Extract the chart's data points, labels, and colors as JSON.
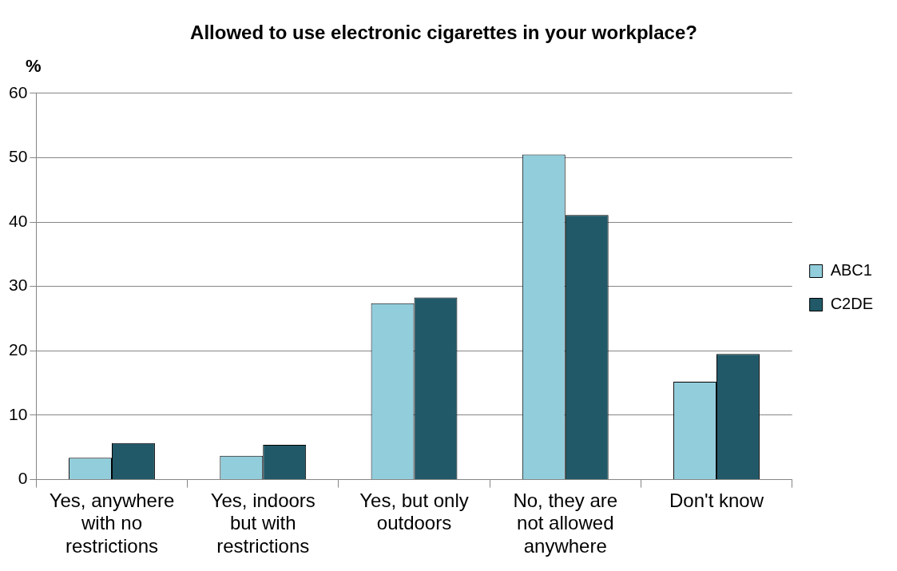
{
  "chart_data": {
    "type": "bar",
    "title": "Allowed to use electronic cigarettes in your workplace?",
    "ylabel": "%",
    "categories": [
      "Yes, anywhere with no restrictions",
      "Yes, indoors but with restrictions",
      "Yes, but only outdoors",
      "No, they are not allowed anywhere",
      "Don't know"
    ],
    "series": [
      {
        "name": "ABC1",
        "color": "#92cddc",
        "values": [
          3.4,
          3.7,
          27.4,
          50.5,
          15.2
        ]
      },
      {
        "name": "C2DE",
        "color": "#215968",
        "values": [
          5.7,
          5.4,
          28.3,
          41.1,
          19.5
        ]
      }
    ],
    "ylim": [
      0,
      60
    ],
    "yticks": [
      0,
      10,
      20,
      30,
      40,
      50,
      60
    ],
    "grid": "y",
    "legend": "right"
  }
}
